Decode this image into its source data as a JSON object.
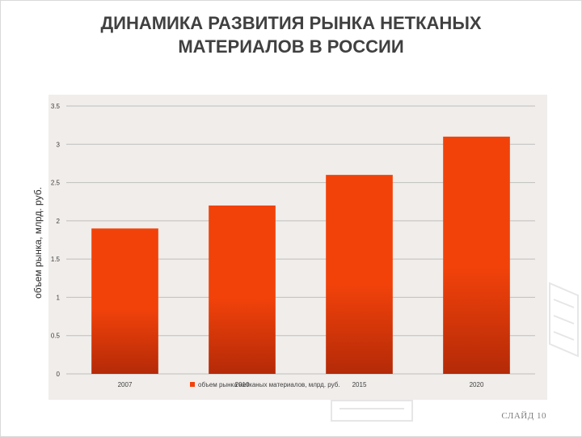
{
  "slide": {
    "title_line1": "ДИНАМИКА РАЗВИТИЯ РЫНКА НЕТКАНЫХ",
    "title_line2": "МАТЕРИАЛОВ В РОССИИ",
    "slide_number": "СЛАЙД 10"
  },
  "chart_data": {
    "type": "bar",
    "title": "",
    "xlabel": "",
    "ylabel": "объем рынка, млрд. руб.",
    "categories": [
      "2007",
      "2010",
      "2015",
      "2020"
    ],
    "series": [
      {
        "name": "объем рынка нетканых материалов, млрд. руб.",
        "values": [
          1.9,
          2.2,
          2.6,
          3.1
        ]
      }
    ],
    "ylim": [
      0,
      3.5
    ],
    "yticks": [
      "0",
      "0.5",
      "1",
      "1.5",
      "2",
      "2.5",
      "3",
      "3.5"
    ],
    "grid": true,
    "legend_position": "bottom",
    "colors": {
      "bar_top": "#f2420a",
      "bar_bottom": "#b42a08",
      "plot_bg": "#f0edea",
      "grid": "#bfbfbf"
    }
  }
}
